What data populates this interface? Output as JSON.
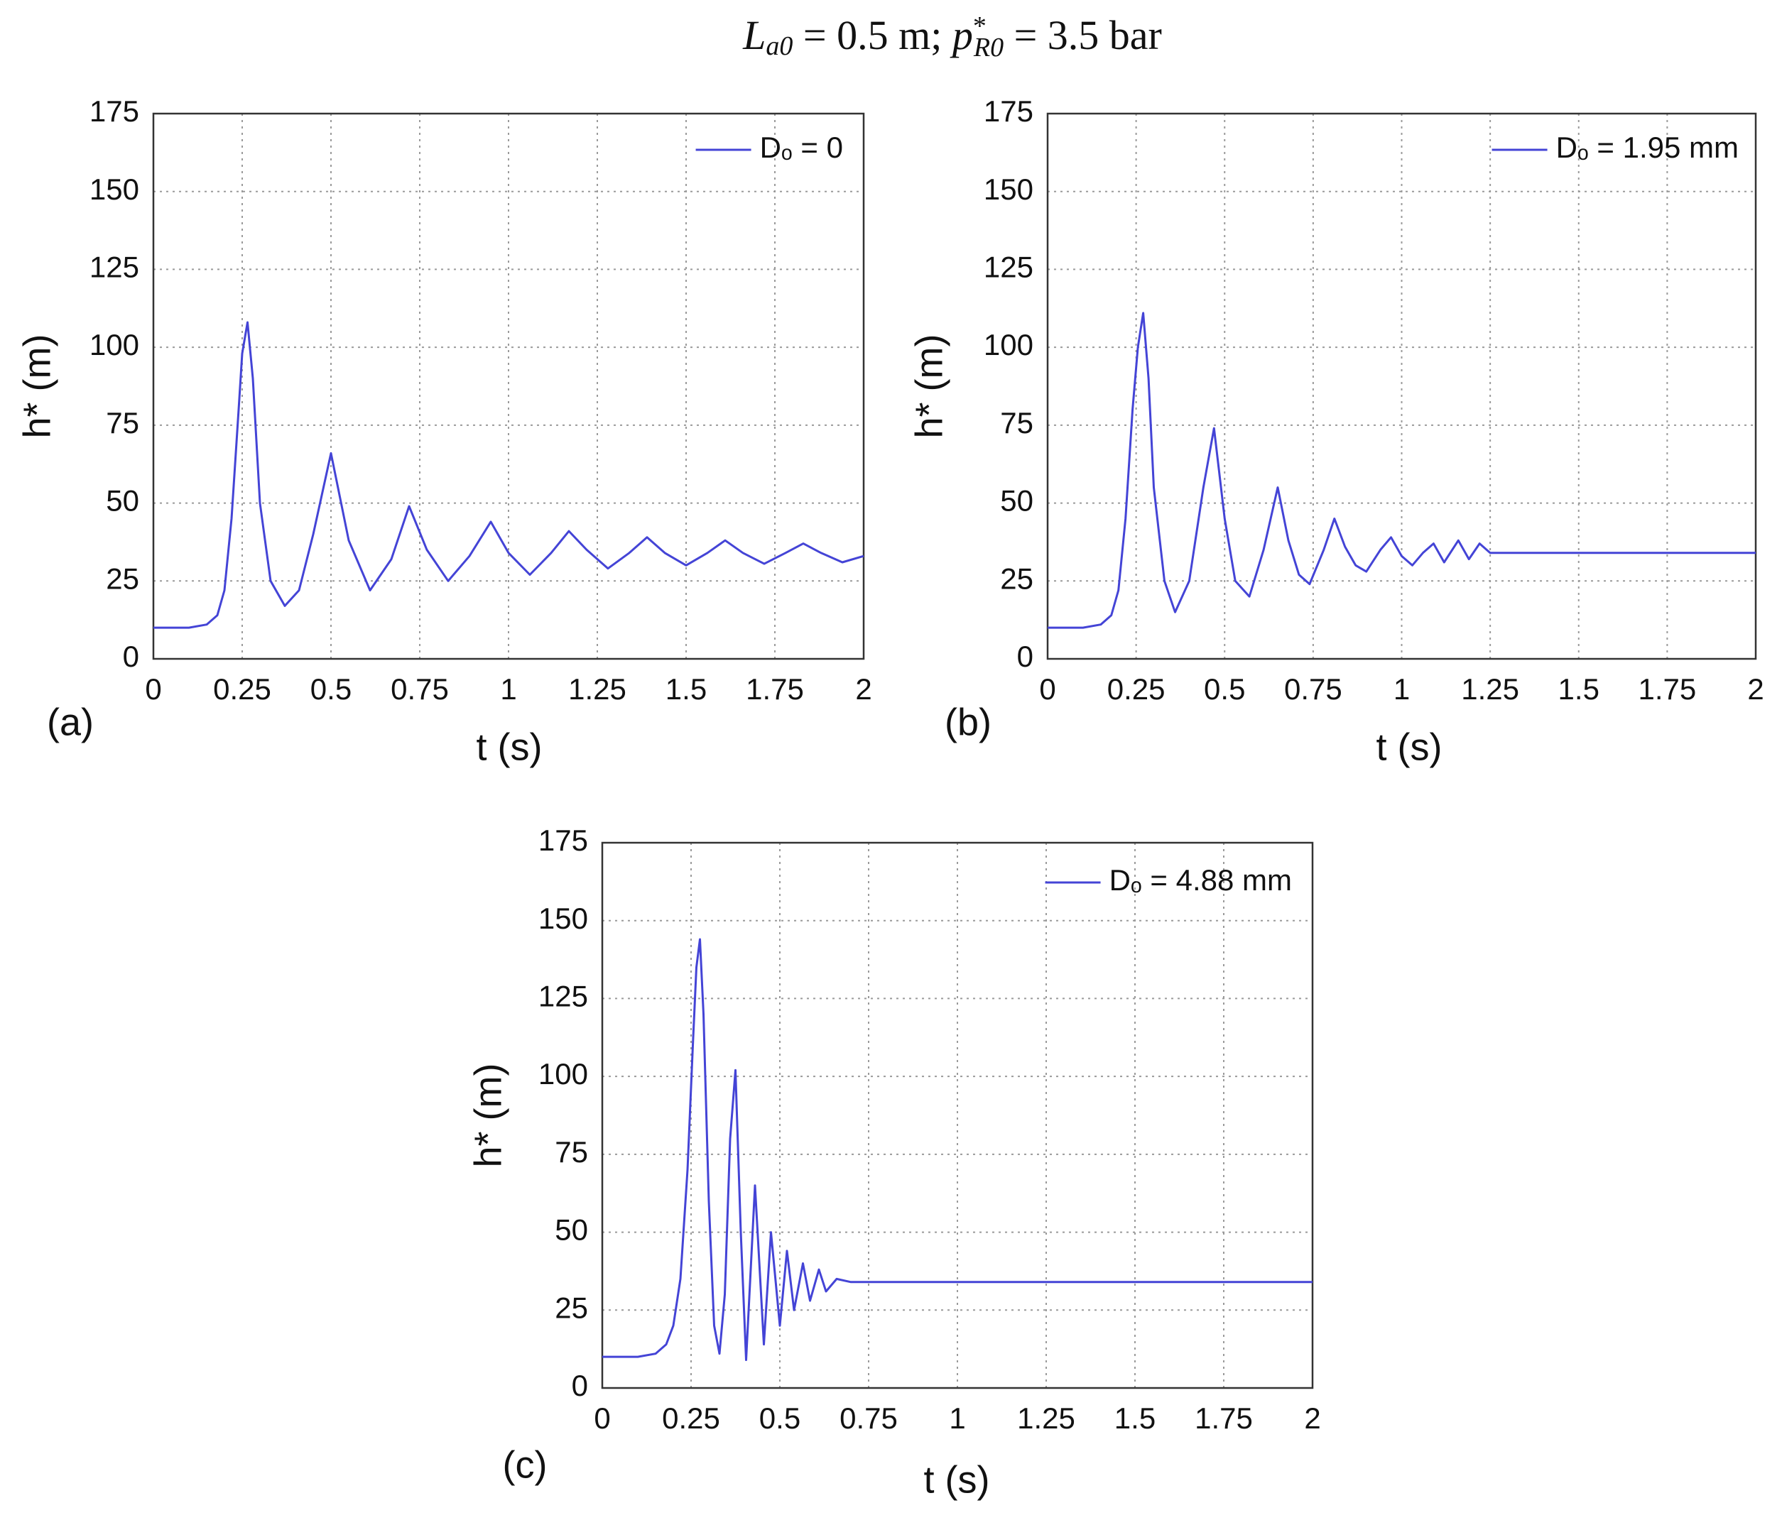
{
  "title": [
    "L",
    "a0",
    " = 0.5 m; ",
    "p",
    "*",
    "R0",
    " = 3.5 bar"
  ],
  "chart_data": [
    {
      "type": "line",
      "panel": "(a)",
      "xlabel": "t (s)",
      "ylabel": "h* (m)",
      "xlim": [
        0,
        2
      ],
      "ylim": [
        0,
        175
      ],
      "xticks": [
        0,
        0.25,
        0.5,
        0.75,
        1,
        1.25,
        1.5,
        1.75,
        2
      ],
      "yticks": [
        0,
        25,
        50,
        75,
        100,
        125,
        150,
        175
      ],
      "grid": true,
      "legend": "upper right",
      "x": [
        0,
        0.1,
        0.15,
        0.18,
        0.2,
        0.22,
        0.24,
        0.25,
        0.265,
        0.28,
        0.3,
        0.33,
        0.37,
        0.41,
        0.45,
        0.5,
        0.55,
        0.61,
        0.67,
        0.72,
        0.77,
        0.83,
        0.89,
        0.95,
        1.0,
        1.06,
        1.12,
        1.17,
        1.22,
        1.28,
        1.34,
        1.39,
        1.44,
        1.5,
        1.56,
        1.61,
        1.66,
        1.72,
        1.78,
        1.83,
        1.88,
        1.94,
        2.0
      ],
      "series": [
        {
          "name": "Dₒ = 0",
          "color": "#4444d6",
          "values": [
            10,
            10,
            11,
            14,
            22,
            45,
            80,
            98,
            108,
            90,
            50,
            25,
            17,
            22,
            40,
            66,
            38,
            22,
            32,
            49,
            35,
            25,
            33,
            44,
            34,
            27,
            34,
            41,
            35,
            29,
            34,
            39,
            34,
            30,
            34,
            38,
            34,
            30.5,
            34,
            37,
            34,
            31,
            33
          ]
        }
      ]
    },
    {
      "type": "line",
      "panel": "(b)",
      "xlabel": "t (s)",
      "ylabel": "h* (m)",
      "xlim": [
        0,
        2
      ],
      "ylim": [
        0,
        175
      ],
      "xticks": [
        0,
        0.25,
        0.5,
        0.75,
        1,
        1.25,
        1.5,
        1.75,
        2
      ],
      "yticks": [
        0,
        25,
        50,
        75,
        100,
        125,
        150,
        175
      ],
      "grid": true,
      "legend": "upper right",
      "x": [
        0,
        0.1,
        0.15,
        0.18,
        0.2,
        0.22,
        0.24,
        0.255,
        0.27,
        0.285,
        0.3,
        0.33,
        0.36,
        0.4,
        0.44,
        0.47,
        0.5,
        0.53,
        0.57,
        0.61,
        0.65,
        0.68,
        0.71,
        0.74,
        0.78,
        0.81,
        0.84,
        0.87,
        0.9,
        0.94,
        0.97,
        1.0,
        1.03,
        1.06,
        1.09,
        1.12,
        1.16,
        1.19,
        1.22,
        1.25,
        1.3,
        1.5,
        1.75,
        2.0
      ],
      "series": [
        {
          "name": "Dₒ = 1.95 mm",
          "color": "#4444d6",
          "values": [
            10,
            10,
            11,
            14,
            22,
            45,
            80,
            100,
            111,
            90,
            55,
            25,
            15,
            25,
            55,
            74,
            45,
            25,
            20,
            35,
            55,
            38,
            27,
            24,
            35,
            45,
            36,
            30,
            28,
            35,
            39,
            33,
            30,
            34,
            37,
            31,
            38,
            32,
            37,
            34,
            34,
            34,
            34,
            34
          ]
        }
      ]
    },
    {
      "type": "line",
      "panel": "(c)",
      "xlabel": "t (s)",
      "ylabel": "h* (m)",
      "xlim": [
        0,
        2
      ],
      "ylim": [
        0,
        175
      ],
      "xticks": [
        0,
        0.25,
        0.5,
        0.75,
        1,
        1.25,
        1.5,
        1.75,
        2
      ],
      "yticks": [
        0,
        25,
        50,
        75,
        100,
        125,
        150,
        175
      ],
      "grid": true,
      "legend": "upper right",
      "x": [
        0,
        0.1,
        0.15,
        0.18,
        0.2,
        0.22,
        0.24,
        0.255,
        0.265,
        0.275,
        0.285,
        0.3,
        0.315,
        0.33,
        0.345,
        0.36,
        0.375,
        0.39,
        0.405,
        0.43,
        0.455,
        0.475,
        0.5,
        0.52,
        0.54,
        0.565,
        0.585,
        0.61,
        0.63,
        0.66,
        0.7,
        1.0,
        1.5,
        2.0
      ],
      "series": [
        {
          "name": "Dₒ = 4.88 mm",
          "color": "#4444d6",
          "values": [
            10,
            10,
            11,
            14,
            20,
            35,
            70,
            110,
            135,
            144,
            120,
            60,
            20,
            11,
            30,
            80,
            102,
            50,
            9,
            65,
            14,
            50,
            20,
            44,
            25,
            40,
            28,
            38,
            31,
            35,
            34,
            34,
            34,
            34
          ]
        }
      ]
    }
  ]
}
